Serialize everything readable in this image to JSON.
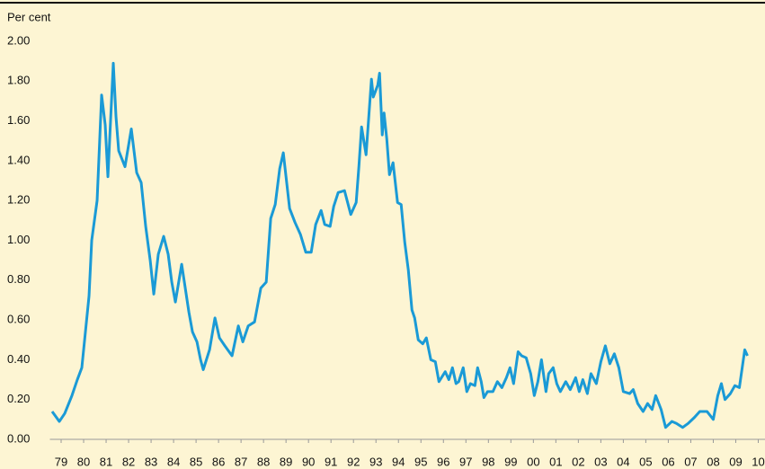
{
  "chart_data": {
    "type": "line",
    "y_label": "Per cent",
    "color": "#1a9ad6",
    "x": [
      1979.1,
      1979.42,
      1979.66,
      1979.98,
      1980.22,
      1980.42,
      1980.58,
      1980.74,
      1980.86,
      1981.1,
      1981.3,
      1981.46,
      1981.58,
      1981.82,
      1981.94,
      1982.06,
      1982.34,
      1982.62,
      1982.86,
      1983.06,
      1983.26,
      1983.46,
      1983.62,
      1983.82,
      1984.06,
      1984.26,
      1984.42,
      1984.58,
      1984.86,
      1985.02,
      1985.18,
      1985.34,
      1985.54,
      1985.7,
      1985.82,
      1986.1,
      1986.34,
      1986.54,
      1986.78,
      1987.1,
      1987.38,
      1987.58,
      1987.82,
      1988.1,
      1988.38,
      1988.62,
      1988.82,
      1989.02,
      1989.22,
      1989.38,
      1989.5,
      1989.66,
      1989.9,
      1990.14,
      1990.38,
      1990.62,
      1990.82,
      1991.06,
      1991.22,
      1991.46,
      1991.62,
      1991.82,
      1992.1,
      1992.38,
      1992.62,
      1992.74,
      1992.86,
      1993.06,
      1993.3,
      1993.38,
      1993.58,
      1993.66,
      1993.78,
      1993.86,
      1993.98,
      1994.1,
      1994.26,
      1994.46,
      1994.62,
      1994.78,
      1994.94,
      1995.1,
      1995.22,
      1995.38,
      1995.58,
      1995.74,
      1995.94,
      1996.14,
      1996.3,
      1996.58,
      1996.74,
      1996.9,
      1997.06,
      1997.18,
      1997.38,
      1997.54,
      1997.7,
      1997.9,
      1998.02,
      1998.18,
      1998.3,
      1998.46,
      1998.7,
      1998.9,
      1999.1,
      1999.3,
      1999.46,
      1999.62,
      1999.82,
      1999.98,
      2000.18,
      2000.38,
      2000.54,
      2000.7,
      2000.86,
      2001.06,
      2001.18,
      2001.38,
      2001.54,
      2001.7,
      2001.94,
      2002.14,
      2002.38,
      2002.54,
      2002.7,
      2002.9,
      2003.06,
      2003.3,
      2003.5,
      2003.7,
      2003.9,
      2004.1,
      2004.3,
      2004.5,
      2004.78,
      2004.94,
      2005.14,
      2005.38,
      2005.58,
      2005.78,
      2005.94,
      2006.18,
      2006.38,
      2006.66,
      2006.86,
      2007.14,
      2007.38,
      2007.66,
      2007.9,
      2008.22,
      2008.5,
      2008.7,
      2008.86,
      2009.02,
      2009.26,
      2009.46,
      2009.66,
      2009.9,
      2010.02
    ],
    "values": [
      0.14,
      0.09,
      0.13,
      0.22,
      0.3,
      0.36,
      0.54,
      0.72,
      1.0,
      1.2,
      1.73,
      1.58,
      1.32,
      1.89,
      1.62,
      1.45,
      1.37,
      1.56,
      1.34,
      1.29,
      1.07,
      0.9,
      0.73,
      0.93,
      1.02,
      0.93,
      0.79,
      0.69,
      0.88,
      0.76,
      0.64,
      0.54,
      0.49,
      0.4,
      0.35,
      0.45,
      0.61,
      0.51,
      0.47,
      0.42,
      0.57,
      0.49,
      0.57,
      0.59,
      0.76,
      0.79,
      1.11,
      1.18,
      1.36,
      1.44,
      1.32,
      1.16,
      1.09,
      1.03,
      0.94,
      0.94,
      1.08,
      1.15,
      1.08,
      1.07,
      1.17,
      1.24,
      1.25,
      1.13,
      1.19,
      1.37,
      1.57,
      1.43,
      1.81,
      1.72,
      1.78,
      1.84,
      1.53,
      1.64,
      1.51,
      1.33,
      1.39,
      1.19,
      1.18,
      0.99,
      0.85,
      0.65,
      0.61,
      0.5,
      0.48,
      0.51,
      0.4,
      0.39,
      0.29,
      0.34,
      0.3,
      0.36,
      0.28,
      0.29,
      0.36,
      0.24,
      0.28,
      0.27,
      0.36,
      0.29,
      0.21,
      0.24,
      0.24,
      0.29,
      0.26,
      0.31,
      0.36,
      0.28,
      0.44,
      0.42,
      0.41,
      0.33,
      0.22,
      0.29,
      0.4,
      0.24,
      0.33,
      0.36,
      0.28,
      0.24,
      0.29,
      0.25,
      0.31,
      0.24,
      0.3,
      0.23,
      0.33,
      0.28,
      0.39,
      0.47,
      0.38,
      0.43,
      0.36,
      0.24,
      0.23,
      0.25,
      0.18,
      0.14,
      0.18,
      0.15,
      0.22,
      0.15,
      0.06,
      0.09,
      0.08,
      0.06,
      0.08,
      0.11,
      0.14,
      0.14,
      0.1,
      0.22,
      0.28,
      0.2,
      0.23,
      0.27,
      0.26,
      0.45,
      0.42
    ],
    "xlim": [
      1979,
      2010.8
    ],
    "xticks": [
      {
        "value": 1979.5,
        "label": "79"
      },
      {
        "value": 1980.5,
        "label": "80"
      },
      {
        "value": 1981.5,
        "label": "81"
      },
      {
        "value": 1982.5,
        "label": "82"
      },
      {
        "value": 1983.5,
        "label": "83"
      },
      {
        "value": 1984.5,
        "label": "84"
      },
      {
        "value": 1985.5,
        "label": "85"
      },
      {
        "value": 1986.5,
        "label": "86"
      },
      {
        "value": 1987.5,
        "label": "87"
      },
      {
        "value": 1988.5,
        "label": "88"
      },
      {
        "value": 1989.5,
        "label": "89"
      },
      {
        "value": 1990.5,
        "label": "90"
      },
      {
        "value": 1991.5,
        "label": "91"
      },
      {
        "value": 1992.5,
        "label": "92"
      },
      {
        "value": 1993.5,
        "label": "93"
      },
      {
        "value": 1994.5,
        "label": "94"
      },
      {
        "value": 1995.5,
        "label": "95"
      },
      {
        "value": 1996.5,
        "label": "96"
      },
      {
        "value": 1997.5,
        "label": "97"
      },
      {
        "value": 1998.5,
        "label": "98"
      },
      {
        "value": 1999.5,
        "label": "99"
      },
      {
        "value": 2000.5,
        "label": "00"
      },
      {
        "value": 2001.5,
        "label": "01"
      },
      {
        "value": 2002.5,
        "label": "02"
      },
      {
        "value": 2003.5,
        "label": "03"
      },
      {
        "value": 2004.5,
        "label": "04"
      },
      {
        "value": 2005.5,
        "label": "05"
      },
      {
        "value": 2006.5,
        "label": "06"
      },
      {
        "value": 2007.5,
        "label": "07"
      },
      {
        "value": 2008.5,
        "label": "08"
      },
      {
        "value": 2009.5,
        "label": "09"
      },
      {
        "value": 2010.5,
        "label": "10"
      }
    ],
    "ylim": [
      0,
      2
    ],
    "yticks": [
      {
        "value": 0,
        "label": "0.00"
      },
      {
        "value": 0.2,
        "label": "0.20"
      },
      {
        "value": 0.4,
        "label": "0.40"
      },
      {
        "value": 0.6,
        "label": "0.60"
      },
      {
        "value": 0.8,
        "label": "0.80"
      },
      {
        "value": 1.0,
        "label": "1.00"
      },
      {
        "value": 1.2,
        "label": "1.20"
      },
      {
        "value": 1.4,
        "label": "1.40"
      },
      {
        "value": 1.6,
        "label": "1.60"
      },
      {
        "value": 1.8,
        "label": "1.80"
      },
      {
        "value": 2.0,
        "label": "2.00"
      }
    ]
  }
}
